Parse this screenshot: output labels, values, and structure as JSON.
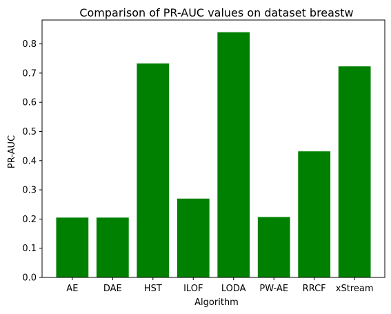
{
  "chart_data": {
    "type": "bar",
    "title": "Comparison of PR-AUC values on dataset breastw",
    "xlabel": "Algorithm",
    "ylabel": "PR-AUC",
    "categories": [
      "AE",
      "DAE",
      "HST",
      "ILOF",
      "LODA",
      "PW-AE",
      "RRCF",
      "xStream"
    ],
    "values": [
      0.205,
      0.205,
      0.733,
      0.27,
      0.84,
      0.207,
      0.432,
      0.723
    ],
    "ylim": [
      0,
      0.8818
    ],
    "yticks": [
      0.0,
      0.1,
      0.2,
      0.3,
      0.4,
      0.5,
      0.6,
      0.7,
      0.8
    ],
    "ytick_labels": [
      "0.0",
      "0.1",
      "0.2",
      "0.3",
      "0.4",
      "0.5",
      "0.6",
      "0.7",
      "0.8"
    ],
    "bar_color": "#008000",
    "grid": false,
    "legend": "none"
  }
}
